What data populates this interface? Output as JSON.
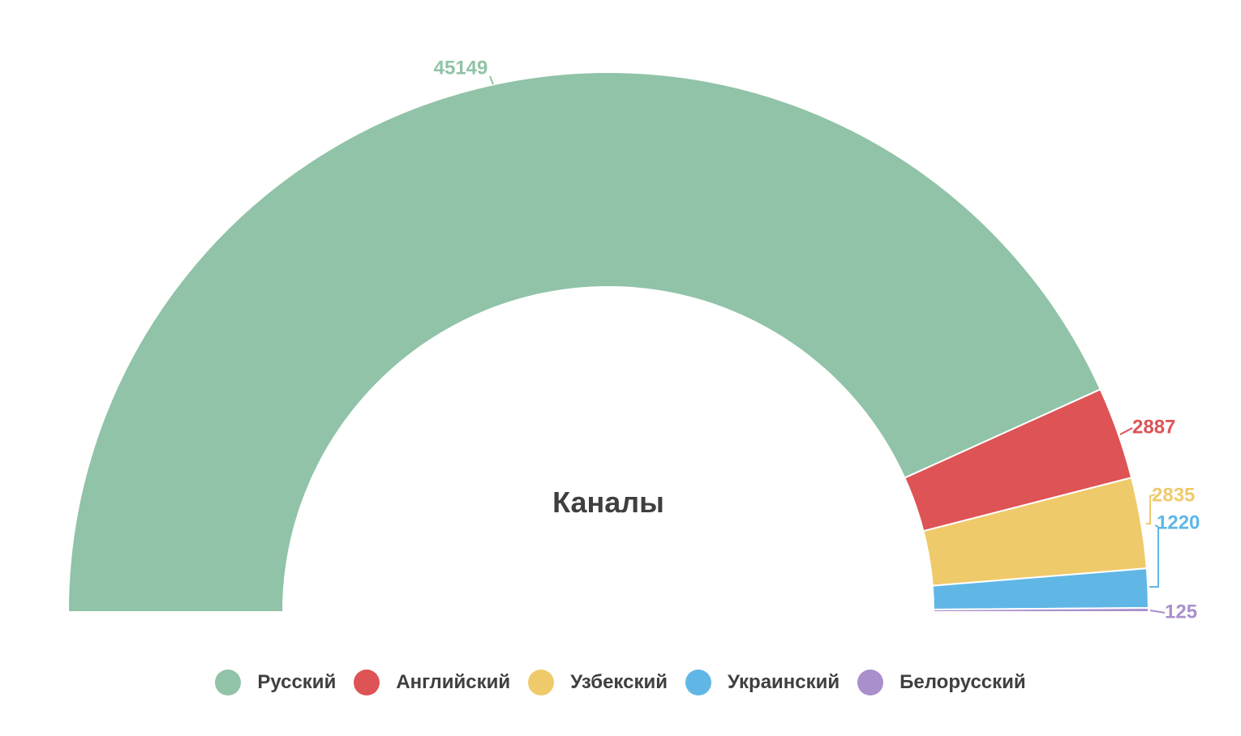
{
  "chart_data": {
    "type": "pie",
    "variant": "semi-donut",
    "title": "Каналы",
    "categories": [
      "Русский",
      "Английский",
      "Узбекский",
      "Украинский",
      "Белорусский"
    ],
    "values": [
      45149,
      2887,
      2835,
      1220,
      125
    ],
    "colors": [
      "#90c3a7",
      "#dd5356",
      "#efca6b",
      "#60b7e6",
      "#a98fcc"
    ],
    "legend_position": "bottom"
  }
}
